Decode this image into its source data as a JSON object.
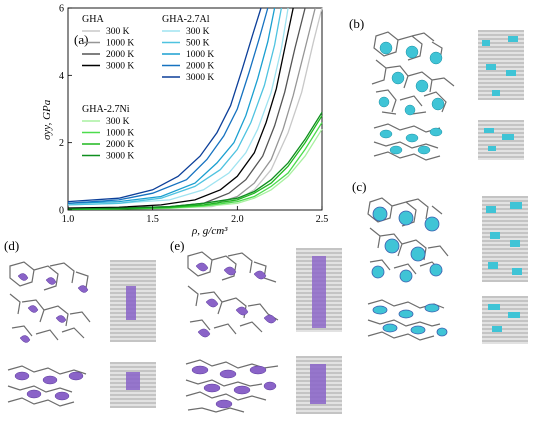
{
  "figure": {
    "panels": [
      "(a)",
      "(b)",
      "(c)",
      "(d)",
      "(e)"
    ]
  },
  "chart_data": {
    "type": "line",
    "title": "",
    "xlabel": "ρ, g/cm³",
    "ylabel": "σyy, GPa",
    "xlim": [
      1.0,
      2.5
    ],
    "ylim": [
      0,
      6
    ],
    "xticks": [
      "1.0",
      "1.5",
      "2.0",
      "2.5"
    ],
    "yticks": [
      "0",
      "2",
      "4",
      "6"
    ],
    "legend_groups": [
      {
        "title": "GHA",
        "entries": [
          {
            "name": "300 K",
            "color": "#c8c8c8"
          },
          {
            "name": "1000 K",
            "color": "#969696"
          },
          {
            "name": "2000 K",
            "color": "#555555"
          },
          {
            "name": "3000 K",
            "color": "#000000"
          }
        ]
      },
      {
        "title": "GHA-2.7Al",
        "entries": [
          {
            "name": "300 K",
            "color": "#9fe3f0"
          },
          {
            "name": "500 K",
            "color": "#4fc3e0"
          },
          {
            "name": "1000 K",
            "color": "#1a9fd0"
          },
          {
            "name": "2000 K",
            "color": "#1672c0"
          },
          {
            "name": "3000 K",
            "color": "#0c3f99"
          }
        ]
      },
      {
        "title": "GHA-2.7Ni",
        "entries": [
          {
            "name": "300 K",
            "color": "#a8f0a0"
          },
          {
            "name": "1000 K",
            "color": "#4ddc4d"
          },
          {
            "name": "2000 K",
            "color": "#1fb81f"
          },
          {
            "name": "3000 K",
            "color": "#0f8f1f"
          }
        ]
      }
    ],
    "series": [
      {
        "group": "GHA",
        "color": "#c8c8c8",
        "x": [
          1.0,
          1.3,
          1.6,
          1.85,
          2.0,
          2.1,
          2.2,
          2.3,
          2.38,
          2.45,
          2.5
        ],
        "y": [
          0.05,
          0.05,
          0.06,
          0.1,
          0.3,
          0.6,
          1.2,
          2.3,
          3.5,
          5.0,
          6.0
        ]
      },
      {
        "group": "GHA",
        "color": "#969696",
        "x": [
          1.0,
          1.3,
          1.6,
          1.85,
          2.0,
          2.1,
          2.2,
          2.27,
          2.33,
          2.4,
          2.46
        ],
        "y": [
          0.05,
          0.05,
          0.08,
          0.15,
          0.4,
          0.8,
          1.5,
          2.4,
          3.4,
          4.8,
          6.0
        ]
      },
      {
        "group": "GHA",
        "color": "#555555",
        "x": [
          1.0,
          1.3,
          1.6,
          1.8,
          1.95,
          2.05,
          2.15,
          2.22,
          2.28,
          2.34,
          2.4
        ],
        "y": [
          0.05,
          0.06,
          0.1,
          0.2,
          0.5,
          0.9,
          1.6,
          2.5,
          3.5,
          4.8,
          6.0
        ]
      },
      {
        "group": "GHA",
        "color": "#000000",
        "x": [
          1.0,
          1.3,
          1.55,
          1.75,
          1.9,
          2.0,
          2.1,
          2.17,
          2.23,
          2.28,
          2.33
        ],
        "y": [
          0.06,
          0.08,
          0.15,
          0.3,
          0.6,
          1.0,
          1.7,
          2.6,
          3.6,
          4.8,
          6.0
        ]
      },
      {
        "group": "GHA-2.7Al",
        "color": "#9fe3f0",
        "x": [
          1.0,
          1.3,
          1.6,
          1.8,
          1.95,
          2.05,
          2.12,
          2.2,
          2.26,
          2.3
        ],
        "y": [
          0.15,
          0.2,
          0.3,
          0.6,
          1.1,
          1.7,
          2.4,
          3.5,
          4.8,
          6.0
        ]
      },
      {
        "group": "GHA-2.7Al",
        "color": "#4fc3e0",
        "x": [
          1.0,
          1.3,
          1.55,
          1.75,
          1.9,
          2.0,
          2.08,
          2.16,
          2.22,
          2.26
        ],
        "y": [
          0.15,
          0.2,
          0.35,
          0.7,
          1.2,
          1.8,
          2.6,
          3.7,
          4.9,
          6.0
        ]
      },
      {
        "group": "GHA-2.7Al",
        "color": "#1a9fd0",
        "x": [
          1.0,
          1.3,
          1.55,
          1.75,
          1.88,
          1.98,
          2.05,
          2.12,
          2.18,
          2.22
        ],
        "y": [
          0.2,
          0.25,
          0.4,
          0.8,
          1.4,
          2.0,
          2.8,
          3.9,
          5.0,
          6.0
        ]
      },
      {
        "group": "GHA-2.7Al",
        "color": "#1672c0",
        "x": [
          1.0,
          1.3,
          1.5,
          1.7,
          1.82,
          1.92,
          2.0,
          2.07,
          2.13,
          2.18
        ],
        "y": [
          0.2,
          0.3,
          0.5,
          0.9,
          1.5,
          2.2,
          3.0,
          4.1,
          5.1,
          6.0
        ]
      },
      {
        "group": "GHA-2.7Al",
        "color": "#0c3f99",
        "x": [
          1.0,
          1.3,
          1.5,
          1.65,
          1.78,
          1.88,
          1.96,
          2.03,
          2.09,
          2.14
        ],
        "y": [
          0.25,
          0.35,
          0.6,
          1.0,
          1.6,
          2.3,
          3.1,
          4.2,
          5.2,
          6.0
        ]
      },
      {
        "group": "GHA-2.7Ni",
        "color": "#a8f0a0",
        "x": [
          1.0,
          1.3,
          1.6,
          1.8,
          2.0,
          2.1,
          2.2,
          2.3,
          2.4,
          2.5
        ],
        "y": [
          0.02,
          0.03,
          0.05,
          0.1,
          0.2,
          0.35,
          0.6,
          1.0,
          1.6,
          2.4
        ]
      },
      {
        "group": "GHA-2.7Ni",
        "color": "#4ddc4d",
        "x": [
          1.0,
          1.3,
          1.6,
          1.8,
          2.0,
          2.1,
          2.2,
          2.3,
          2.4,
          2.5
        ],
        "y": [
          0.02,
          0.03,
          0.06,
          0.12,
          0.25,
          0.4,
          0.7,
          1.1,
          1.8,
          2.6
        ]
      },
      {
        "group": "GHA-2.7Ni",
        "color": "#1fb81f",
        "x": [
          1.0,
          1.3,
          1.6,
          1.8,
          2.0,
          2.1,
          2.2,
          2.3,
          2.4,
          2.5
        ],
        "y": [
          0.02,
          0.04,
          0.08,
          0.15,
          0.3,
          0.5,
          0.8,
          1.3,
          2.0,
          2.8
        ]
      },
      {
        "group": "GHA-2.7Ni",
        "color": "#0f8f1f",
        "x": [
          1.0,
          1.3,
          1.6,
          1.8,
          2.0,
          2.1,
          2.2,
          2.3,
          2.4,
          2.5
        ],
        "y": [
          0.03,
          0.05,
          0.1,
          0.2,
          0.35,
          0.55,
          0.9,
          1.4,
          2.1,
          2.9
        ]
      }
    ]
  }
}
